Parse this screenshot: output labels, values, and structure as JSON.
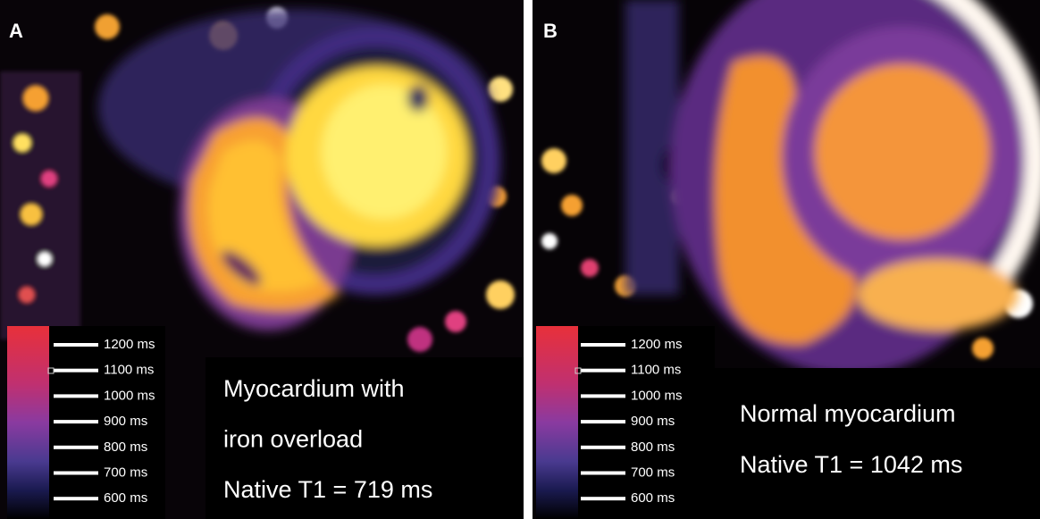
{
  "panels": [
    {
      "label": "A",
      "scale": [
        "1200 ms",
        "1100 ms",
        "1000 ms",
        "900 ms",
        "800 ms",
        "700 ms",
        "600 ms"
      ],
      "caption": [
        "Myocardium with",
        "iron overload",
        "Native T1 = 719 ms"
      ]
    },
    {
      "label": "B",
      "scale": [
        "1200 ms",
        "1100 ms",
        "1000 ms",
        "900 ms",
        "800 ms",
        "700 ms",
        "600 ms"
      ],
      "caption": [
        "Normal myocardium",
        "Native T1 = 1042 ms"
      ]
    }
  ]
}
